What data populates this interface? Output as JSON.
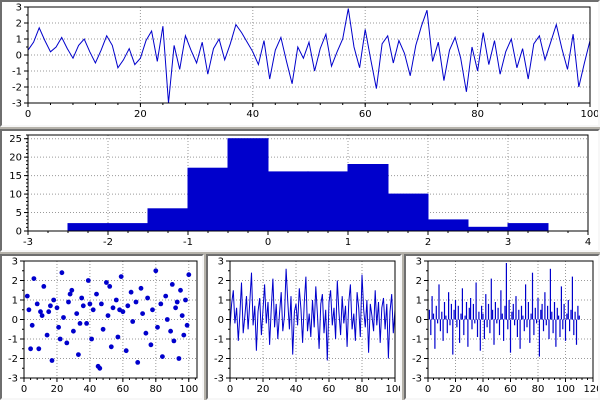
{
  "app": {
    "accent_color": "#0000cc",
    "axis_color": "#000000",
    "grid_color": "#9a9a9a",
    "panel_face": "#ffffff",
    "background": "#b5b2aa"
  },
  "chart_data": [
    {
      "id": "signal-line",
      "type": "line",
      "title": "",
      "xlabel": "",
      "ylabel": "",
      "color": "#0000cc",
      "xlim": [
        0,
        100
      ],
      "ylim": [
        -3,
        3
      ],
      "xticks": [
        0,
        20,
        40,
        60,
        80,
        100
      ],
      "yticks": [
        -3,
        -2,
        -1,
        0,
        1,
        2,
        3
      ],
      "xminor": 4,
      "yminor": 0.5,
      "grid": true,
      "x0": 0,
      "dx": 1,
      "y": [
        0.3,
        0.8,
        1.7,
        0.9,
        0.2,
        0.5,
        1.1,
        0.4,
        -0.2,
        0.6,
        1.0,
        0.2,
        -0.5,
        0.3,
        1.2,
        0.6,
        -0.8,
        -0.3,
        0.4,
        -0.6,
        -0.2,
        0.9,
        1.5,
        -0.4,
        1.8,
        -3.0,
        0.6,
        -0.9,
        1.2,
        0.3,
        -0.5,
        0.8,
        -1.2,
        0.4,
        1.0,
        -0.3,
        0.7,
        1.9,
        1.4,
        0.8,
        0.2,
        -0.6,
        0.9,
        -1.5,
        0.3,
        1.1,
        -0.4,
        -1.8,
        0.5,
        -0.2,
        0.8,
        -1.0,
        0.4,
        1.3,
        -0.7,
        0.2,
        1.0,
        2.9,
        0.5,
        -0.8,
        1.6,
        -0.3,
        -2.1,
        0.7,
        1.2,
        -0.5,
        0.9,
        0.1,
        -1.3,
        0.6,
        1.8,
        2.8,
        -0.4,
        0.8,
        -1.6,
        0.3,
        1.1,
        -0.2,
        -2.3,
        0.5,
        -1.0,
        1.4,
        -0.6,
        0.9,
        -1.2,
        0.2,
        1.0,
        -0.8,
        0.4,
        -1.5,
        0.7,
        1.2,
        -0.3,
        0.8,
        1.9,
        0.4,
        -0.9,
        1.3,
        -2.0,
        -0.5,
        0.9
      ]
    },
    {
      "id": "histogram",
      "type": "bar",
      "title": "",
      "xlabel": "",
      "ylabel": "",
      "color": "#0000cc",
      "xlim": [
        -3,
        4
      ],
      "ylim": [
        0,
        26
      ],
      "xticks": [
        -3,
        -2,
        -1,
        0,
        1,
        2,
        3,
        4
      ],
      "yticks": [
        0,
        5,
        10,
        15,
        20,
        25
      ],
      "xminor": 0.25,
      "yminor": 1,
      "grid": true,
      "edges": [
        -2.5,
        -2,
        -1.5,
        -1,
        -0.5,
        0,
        0.5,
        1,
        1.5,
        2,
        2.5,
        3,
        3.5
      ],
      "counts": [
        2,
        2,
        6,
        17,
        25,
        16,
        16,
        18,
        10,
        3,
        1,
        2
      ]
    },
    {
      "id": "scatter",
      "type": "scatter",
      "title": "",
      "xlabel": "",
      "ylabel": "",
      "color": "#0000cc",
      "xlim": [
        0,
        105
      ],
      "ylim": [
        -3,
        3
      ],
      "xticks": [
        0,
        20,
        40,
        60,
        80,
        100
      ],
      "yticks": [
        -3,
        -2,
        -1,
        0,
        1,
        2,
        3
      ],
      "xminor": 4,
      "yminor": 0.5,
      "grid": true,
      "x": [
        2,
        3,
        5,
        6,
        8,
        9,
        11,
        12,
        14,
        15,
        17,
        18,
        20,
        21,
        23,
        24,
        26,
        27,
        29,
        30,
        32,
        33,
        35,
        36,
        38,
        39,
        41,
        42,
        44,
        45,
        47,
        48,
        50,
        51,
        53,
        54,
        56,
        57,
        59,
        60,
        62,
        63,
        65,
        66,
        68,
        69,
        71,
        72,
        74,
        75,
        77,
        78,
        80,
        81,
        83,
        84,
        86,
        87,
        89,
        90,
        91,
        92,
        93,
        94,
        95,
        96,
        97,
        98,
        99,
        100,
        4,
        10,
        16,
        22,
        28,
        34,
        40,
        46,
        52,
        58
      ],
      "y": [
        1.2,
        0.5,
        -0.3,
        2.1,
        0.8,
        -1.5,
        0.2,
        1.7,
        -0.8,
        0.4,
        -2.1,
        1.0,
        0.6,
        -0.4,
        2.4,
        0.1,
        -1.2,
        0.9,
        1.5,
        -0.6,
        0.3,
        -1.8,
        1.1,
        0.7,
        -0.2,
        2.0,
        -1.0,
        0.5,
        1.3,
        -2.4,
        0.8,
        -0.5,
        1.9,
        0.2,
        -1.4,
        0.6,
        1.0,
        -0.9,
        2.2,
        0.4,
        -1.6,
        0.7,
        1.4,
        -0.1,
        0.9,
        -2.2,
        1.6,
        0.3,
        -0.7,
        1.1,
        -1.3,
        0.5,
        2.5,
        -0.4,
        0.8,
        -1.9,
        1.2,
        0.0,
        -0.6,
        1.8,
        -1.1,
        0.6,
        0.9,
        -2.0,
        1.5,
        0.2,
        -0.8,
        1.0,
        -0.3,
        2.3,
        -1.5,
        0.4,
        0.7,
        -1.0,
        1.3,
        -0.2,
        0.8,
        -2.5,
        1.7,
        0.5
      ]
    },
    {
      "id": "series-line",
      "type": "line",
      "title": "",
      "xlabel": "",
      "ylabel": "",
      "color": "#0000cc",
      "xlim": [
        0,
        100
      ],
      "ylim": [
        -3,
        3
      ],
      "xticks": [
        0,
        20,
        40,
        60,
        80,
        100
      ],
      "yticks": [
        -3,
        -2,
        -1,
        0,
        1,
        2,
        3
      ],
      "xminor": 4,
      "yminor": 0.5,
      "grid": true,
      "x0": 0,
      "dx": 1,
      "y": [
        -0.4,
        0.8,
        1.5,
        -0.2,
        0.6,
        -1.1,
        0.3,
        1.9,
        -0.7,
        0.2,
        1.2,
        -0.5,
        0.9,
        2.4,
        -0.3,
        0.7,
        -1.6,
        0.4,
        1.1,
        -0.8,
        0.5,
        1.8,
        -0.2,
        0.9,
        -1.3,
        0.6,
        2.1,
        -0.4,
        0.8,
        -1.0,
        0.3,
        1.4,
        -0.6,
        0.2,
        2.6,
        0.9,
        -0.5,
        1.2,
        -1.8,
        0.4,
        0.8,
        -0.3,
        1.6,
        0.5,
        -1.2,
        0.9,
        2.2,
        -0.6,
        0.3,
        -0.9,
        1.0,
        -0.4,
        1.7,
        0.2,
        -1.5,
        0.8,
        1.3,
        -0.7,
        0.5,
        -2.1,
        0.9,
        1.5,
        -0.3,
        0.6,
        -1.0,
        2.0,
        0.4,
        -0.8,
        1.2,
        -0.2,
        0.7,
        -1.4,
        0.9,
        1.8,
        -0.5,
        0.3,
        -1.1,
        1.4,
        0.6,
        -0.9,
        2.3,
        0.5,
        -0.4,
        1.0,
        -1.7,
        0.8,
        0.2,
        -0.6,
        1.5,
        -0.3,
        0.9,
        -1.2,
        0.6,
        1.1,
        -0.5,
        0.8,
        -2.0,
        0.4,
        1.3,
        -0.7,
        0.5
      ]
    },
    {
      "id": "stem",
      "type": "stem",
      "title": "",
      "xlabel": "",
      "ylabel": "",
      "color": "#0000cc",
      "xlim": [
        0,
        120
      ],
      "ylim": [
        -3,
        3
      ],
      "xticks": [
        0,
        20,
        40,
        60,
        80,
        100,
        120
      ],
      "yticks": [
        -3,
        -2,
        -1,
        0,
        1,
        2,
        3
      ],
      "xminor": 4,
      "yminor": 0.5,
      "grid": true,
      "x0": 1,
      "dx": 1,
      "y": [
        0.5,
        -0.8,
        1.2,
        0.3,
        -1.5,
        0.7,
        -0.2,
        1.8,
        -0.6,
        0.4,
        -1.1,
        0.9,
        0.2,
        -0.7,
        1.4,
        -0.3,
        0.8,
        -1.8,
        0.5,
        1.0,
        -0.4,
        0.7,
        -1.2,
        0.3,
        1.6,
        -0.8,
        0.2,
        0.9,
        -1.4,
        0.6,
        1.1,
        -0.5,
        0.8,
        -0.2,
        1.9,
        -0.9,
        0.4,
        -1.6,
        0.7,
        0.3,
        -1.0,
        1.3,
        -0.4,
        0.8,
        -0.7,
        2.1,
        0.5,
        -1.3,
        0.9,
        -0.2,
        0.6,
        -0.8,
        1.5,
        0.3,
        -1.1,
        0.7,
        2.9,
        -0.5,
        1.0,
        -1.7,
        0.4,
        0.8,
        -0.3,
        1.2,
        -0.9,
        0.5,
        -1.5,
        0.7,
        0.2,
        -0.6,
        1.8,
        -0.4,
        0.9,
        -1.2,
        0.3,
        2.4,
        -0.8,
        0.6,
        -0.2,
        1.1,
        -1.9,
        0.5,
        0.8,
        -0.6,
        1.4,
        -0.3,
        0.7,
        -1.0,
        2.6,
        0.4,
        -0.7,
        0.9,
        -1.4,
        0.6,
        0.2,
        -0.9,
        1.7,
        -0.5,
        0.8,
        -1.1,
        0.3,
        1.0,
        -0.6,
        0.5,
        2.2,
        -0.8,
        0.4,
        -1.3,
        0.7,
        0.2
      ]
    }
  ]
}
